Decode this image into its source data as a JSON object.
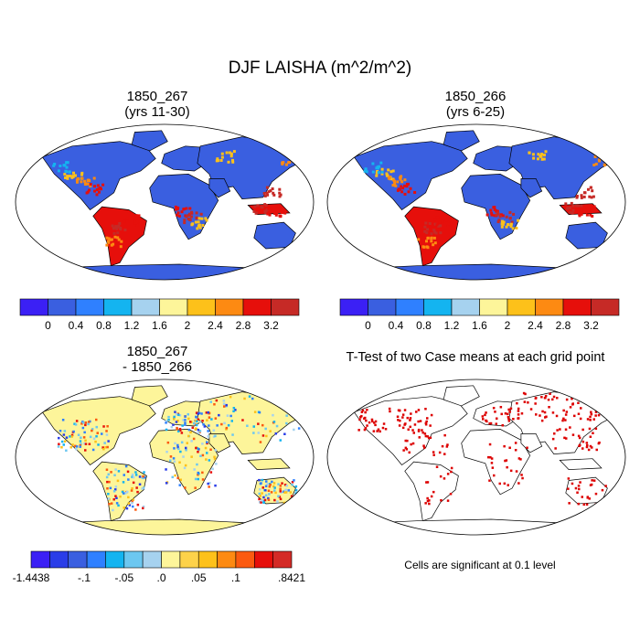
{
  "figure": {
    "title": "DJF LAISHA (m^2/m^2)",
    "note": "Cells are significant at 0.1 level"
  },
  "chart_data": [
    {
      "type": "heatmap",
      "title": "1850_267",
      "subtitle": "(yrs 11-30)",
      "projection": "Robinson world map",
      "colorbar": {
        "colors": [
          "#3b20f5",
          "#3a5fe0",
          "#2f80ff",
          "#14b4f0",
          "#a6d2ef",
          "#fdf59a",
          "#fdc11a",
          "#fd8a12",
          "#e60f0b",
          "#c62a26"
        ],
        "tick_labels": [
          "0",
          "0.4",
          "0.8",
          "1.2",
          "1.6",
          "2",
          "2.4",
          "2.8",
          "3.2"
        ]
      }
    },
    {
      "type": "heatmap",
      "title": "1850_266",
      "subtitle": "(yrs 6-25)",
      "projection": "Robinson world map",
      "colorbar": {
        "colors": [
          "#3b20f5",
          "#3a5fe0",
          "#2f80ff",
          "#14b4f0",
          "#a6d2ef",
          "#fdf59a",
          "#fdc11a",
          "#fd8a12",
          "#e60f0b",
          "#c62a26"
        ],
        "tick_labels": [
          "0",
          "0.4",
          "0.8",
          "1.2",
          "1.6",
          "2",
          "2.4",
          "2.8",
          "3.2"
        ]
      }
    },
    {
      "type": "heatmap",
      "title": "1850_267",
      "subtitle": "- 1850_266",
      "projection": "Robinson world map",
      "colorbar": {
        "colors": [
          "#3b20f5",
          "#2a3de8",
          "#3a5fe0",
          "#2f80ff",
          "#14b4f0",
          "#6cc7f0",
          "#a6d2ef",
          "#fdf59a",
          "#fdd24a",
          "#fdc11a",
          "#fd8a12",
          "#fb5a10",
          "#e60f0b",
          "#d42a26"
        ],
        "tick_labels": [
          "-1.4438",
          "-.1",
          "-.05",
          ".0",
          ".05",
          ".1",
          ".8421"
        ]
      }
    },
    {
      "type": "heatmap",
      "title": "T-Test of two Case means at each grid point",
      "projection": "Robinson world map",
      "significance_color": "#dd0000"
    }
  ]
}
